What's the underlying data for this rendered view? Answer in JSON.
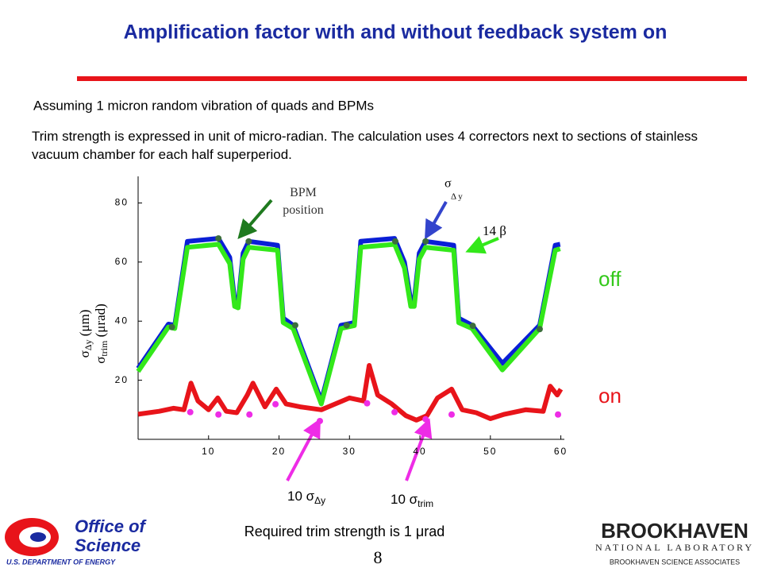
{
  "slide": {
    "title": "Amplification factor with and without feedback system on",
    "bullets": [
      "Assuming 1 micron random vibration of quads and BPMs",
      "Trim strength is expressed in unit of micro-radian. The calculation uses 4 correctors next to sections of stainless vacuum chamber for each half superperiod."
    ],
    "footer_note": "Required trim strength is 1 μrad",
    "page_number": "8",
    "logo_left": {
      "line1": "Office of",
      "line2": "Science",
      "line3": "U.S. DEPARTMENT OF ENERGY"
    },
    "logo_right": {
      "line1": "BROOKHAVEN",
      "line2": "NATIONAL LABORATORY",
      "line3": "BROOKHAVEN SCIENCE ASSOCIATES"
    }
  },
  "chart_data": {
    "type": "line",
    "ylabel": {
      "line1": "σ",
      "line1_sub": "Δy",
      "line1_unit": " (μm)",
      "line2": "σ",
      "line2_sub": "trim",
      "line2_unit": " (μrad)"
    },
    "annotations": {
      "bpm": "BPM position",
      "sigma": "σ",
      "sigma_sub": "Δ y",
      "beta": "14 β",
      "off": "off",
      "on": "on",
      "sigma_dy": "10 σ",
      "sigma_dy_sub": "Δy",
      "sigma_trim": "10 σ",
      "sigma_trim_sub": "trim"
    },
    "xlim": [
      0,
      60.5
    ],
    "ylim": [
      0,
      89
    ],
    "xticks": [
      10,
      20,
      30,
      40,
      50,
      60
    ],
    "yticks": [
      20,
      40,
      60,
      80
    ],
    "series": [
      {
        "name": "σ Δy off",
        "color": "#0a1fd6",
        "kind": "line",
        "x": [
          0,
          4.3,
          5.2,
          7,
          11.4,
          13,
          13.7,
          14.2,
          14.9,
          15.7,
          19.8,
          20.6,
          22,
          26,
          28.8,
          30.7,
          31.6,
          36.4,
          37.8,
          38.7,
          39.2,
          39.9,
          40.8,
          44.8,
          45.5,
          47.4,
          51.7,
          57,
          59.2,
          59.9
        ],
        "values": [
          24,
          39,
          38.6,
          67,
          68,
          61.6,
          47,
          46,
          63,
          67,
          65.7,
          41,
          38.6,
          13,
          38.6,
          39.5,
          67,
          68,
          60,
          47,
          47,
          63,
          67,
          65.7,
          41,
          38.6,
          25.7,
          38.6,
          65.7,
          66
        ]
      },
      {
        "name": "14 β",
        "color": "#33e81a",
        "kind": "line",
        "x": [
          0,
          4.3,
          5.2,
          7,
          11.4,
          13,
          13.7,
          14.2,
          14.9,
          15.7,
          19.8,
          20.6,
          22,
          26,
          28.8,
          30.7,
          31.6,
          36.4,
          37.8,
          38.7,
          39.2,
          39.9,
          40.8,
          44.8,
          45.5,
          47.4,
          51.7,
          57,
          59.2,
          59.9
        ],
        "values": [
          23,
          38,
          37.5,
          65,
          66,
          59.5,
          45,
          44.5,
          61,
          65,
          64,
          39.5,
          37.5,
          12,
          37.5,
          38.5,
          65,
          66,
          58,
          45,
          45,
          61,
          65,
          64,
          39.5,
          37.5,
          23.5,
          37.5,
          64,
          64.5
        ]
      },
      {
        "name": "σ trim on",
        "color": "#e8141a",
        "kind": "line",
        "x": [
          0,
          3,
          5,
          6.5,
          7.5,
          8.5,
          10,
          11.3,
          12.5,
          14,
          15.5,
          16.3,
          18,
          19.6,
          21,
          23,
          26,
          28,
          30,
          32,
          32.8,
          34,
          36,
          38,
          39.5,
          41,
          42.5,
          44.5,
          46,
          48,
          50,
          52,
          55,
          57.5,
          58.5,
          59.5,
          60
        ],
        "values": [
          8.5,
          9.5,
          10.5,
          10,
          19,
          13,
          10,
          14,
          9.5,
          9,
          15,
          19,
          11,
          17,
          12,
          11,
          10,
          12,
          14,
          13,
          25,
          15,
          12,
          8,
          6.5,
          8,
          14,
          17,
          10,
          9,
          7,
          8.5,
          10,
          9.5,
          18,
          15,
          17
        ]
      },
      {
        "name": "BPM position",
        "color": "#3c6e3c",
        "kind": "points",
        "x": [
          4.8,
          11.4,
          15.7,
          22.3,
          29.6,
          36.5,
          40.8,
          47.5,
          57
        ],
        "values": [
          38,
          68,
          67,
          38.6,
          38.6,
          67,
          67,
          38.4,
          37.3
        ]
      },
      {
        "name": "10 σ Δy",
        "color": "#ee2ce6",
        "kind": "points",
        "x": [
          7.4,
          11.4,
          15.8,
          19.5,
          25.8,
          32.5,
          36.4,
          40.8,
          44.5,
          59.6
        ],
        "values": [
          9.2,
          8.4,
          8.4,
          11.9,
          6.2,
          12.2,
          9.2,
          6.8,
          8.4,
          8.4
        ]
      }
    ]
  }
}
